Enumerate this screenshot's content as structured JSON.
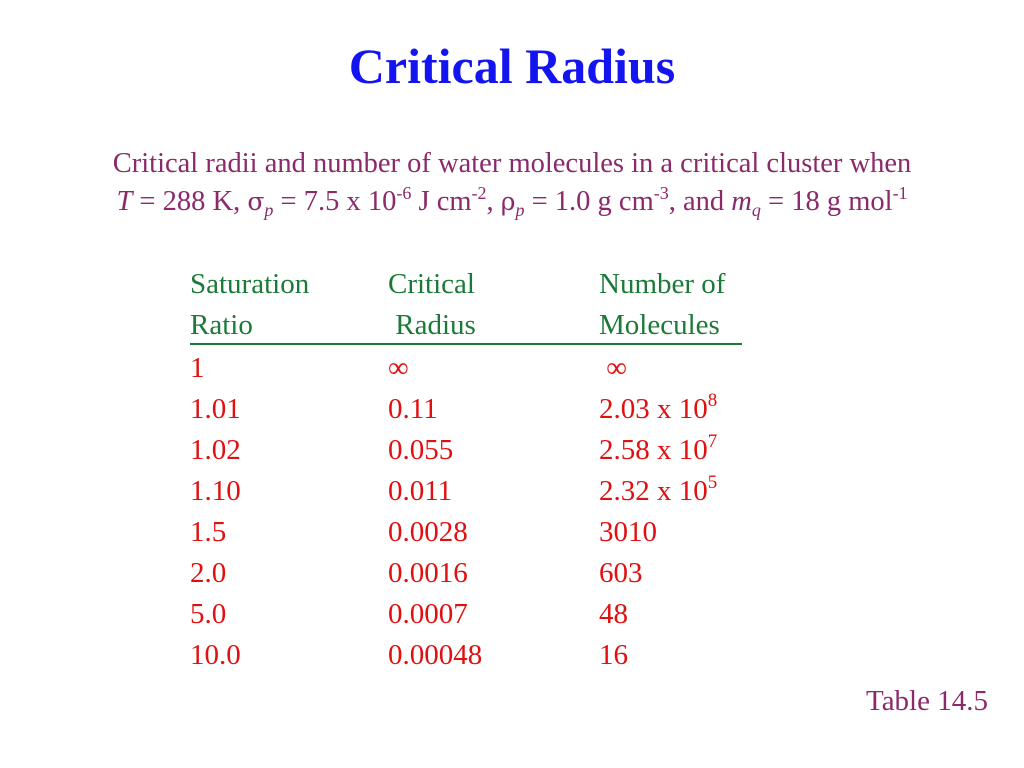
{
  "title": "Critical Radius",
  "caption": {
    "line1": "Critical radii and number of water molecules in a critical cluster when",
    "T_sym": "T",
    "T_value": " = 288 K, ",
    "sigma_sym": "σ",
    "sigma_sub": "p",
    "sigma_value": " = 7.5 x 10",
    "sigma_exp": "-6",
    "sigma_unit": " J cm",
    "sigma_unit_exp": "-2",
    "sep1": ", ",
    "rho_sym": "ρ",
    "rho_sub": "p",
    "rho_value": " = 1.0 g cm",
    "rho_unit_exp": "-3",
    "and": ", and ",
    "m_sym": "m",
    "m_sub": "q",
    "m_value": " = 18 g mol",
    "m_unit_exp": "-1"
  },
  "table": {
    "header_top": [
      "Saturation",
      "Critical",
      "Number of"
    ],
    "header_bottom": [
      "Ratio",
      " Radius",
      "Molecules"
    ],
    "rows": [
      {
        "ratio": "1",
        "radius": "∞",
        "molecules": " ∞",
        "exp": ""
      },
      {
        "ratio": "1.01",
        "radius": "0.11",
        "molecules": "2.03 x 10",
        "exp": "8"
      },
      {
        "ratio": "1.02",
        "radius": "0.055",
        "molecules": "2.58 x 10",
        "exp": "7"
      },
      {
        "ratio": "1.10",
        "radius": "0.011",
        "molecules": "2.32 x 10",
        "exp": "5"
      },
      {
        "ratio": "1.5",
        "radius": "0.0028",
        "molecules": "3010",
        "exp": ""
      },
      {
        "ratio": "2.0",
        "radius": "0.0016",
        "molecules": "603",
        "exp": ""
      },
      {
        "ratio": "5.0",
        "radius": "0.0007",
        "molecules": "48",
        "exp": ""
      },
      {
        "ratio": "10.0",
        "radius": "0.00048",
        "molecules": "16",
        "exp": ""
      }
    ]
  },
  "table_ref": "Table 14.5",
  "colors": {
    "title": "#1414f0",
    "caption": "#8b2a6b",
    "header": "#1b7a37",
    "data": "#e01010"
  }
}
